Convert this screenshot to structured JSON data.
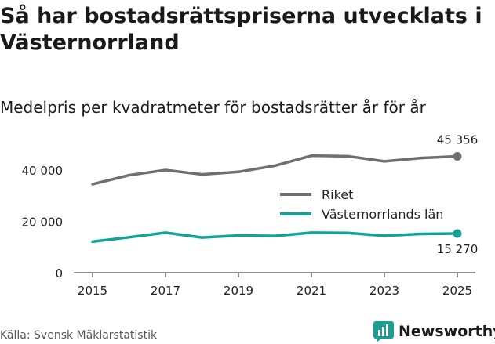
{
  "title": "Så har bostadsrättspriserna utvecklats i Västernorrland",
  "subtitle": "Medelpris per kvadratmeter för bostadsrätter år för år",
  "source": "Källa: Svensk Mäklarstatistik",
  "brand": {
    "name": "Newsworthy",
    "icon": "bar-chart-logo-icon",
    "color": "#1a9e91"
  },
  "chart_data": {
    "type": "line",
    "x": [
      2015,
      2016,
      2017,
      2018,
      2019,
      2020,
      2021,
      2022,
      2023,
      2024,
      2025
    ],
    "xticks": [
      "2015",
      "2017",
      "2019",
      "2021",
      "2023",
      "2025"
    ],
    "yticks": [
      "0",
      "20 000",
      "40 000"
    ],
    "ylim": [
      0,
      60000
    ],
    "grid": false,
    "legend_position": "right",
    "series": [
      {
        "name": "Riket",
        "color": "#6e6e73",
        "values": [
          34500,
          38000,
          40000,
          38300,
          39300,
          41700,
          45600,
          45400,
          43400,
          44700,
          45356
        ],
        "end_label": "45 356"
      },
      {
        "name": "Västernorrlands län",
        "color": "#12a396",
        "values": [
          12100,
          13800,
          15600,
          13700,
          14500,
          14300,
          15600,
          15500,
          14400,
          15100,
          15270
        ],
        "end_label": "15 270"
      }
    ]
  }
}
